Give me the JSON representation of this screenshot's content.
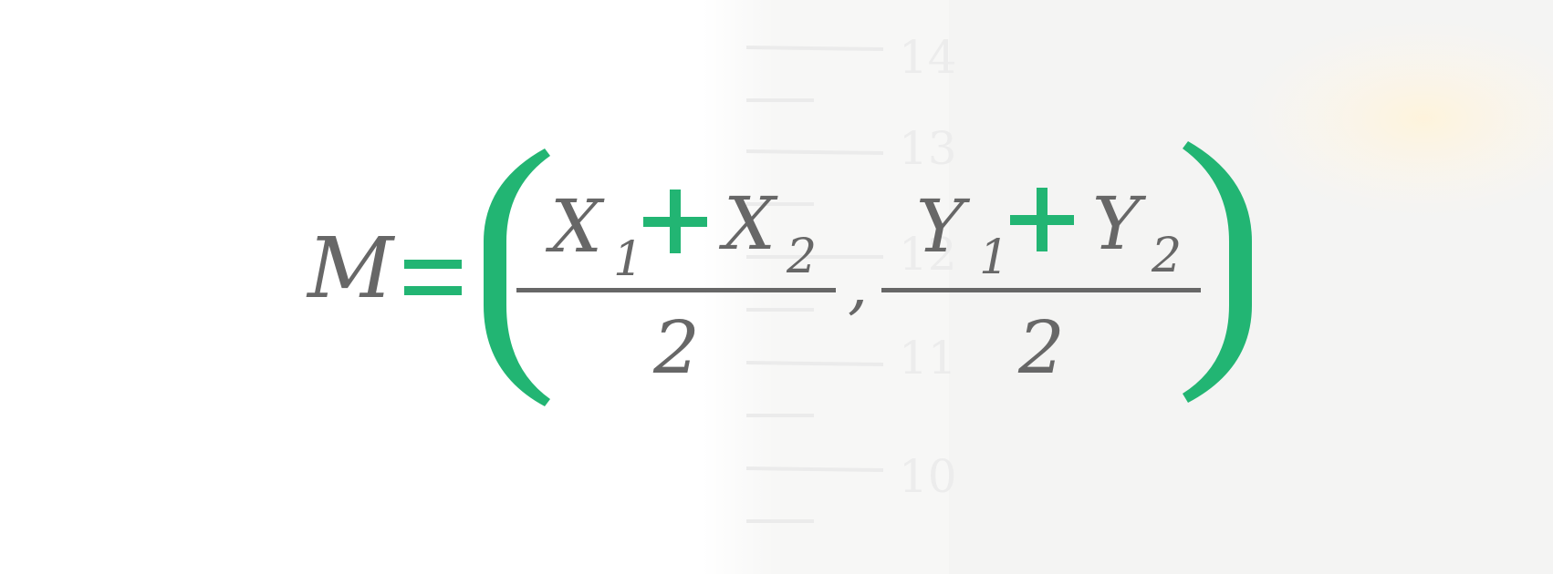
{
  "formula": {
    "lhs": "M",
    "equals": "=",
    "open_paren": "(",
    "close_paren": ")",
    "comma": ",",
    "x_term": {
      "a": "X",
      "a_sub": "1",
      "plus": "+",
      "b": "X",
      "b_sub": "2",
      "denominator": "2"
    },
    "y_term": {
      "a": "Y",
      "a_sub": "1",
      "plus": "+",
      "b": "Y",
      "b_sub": "2",
      "denominator": "2"
    }
  },
  "background": {
    "ruler_numbers": [
      "14",
      "13",
      "12",
      "11",
      "10"
    ]
  },
  "colors": {
    "variable": "#676767",
    "operator": "#22b573",
    "fraction_bar": "#676767"
  }
}
